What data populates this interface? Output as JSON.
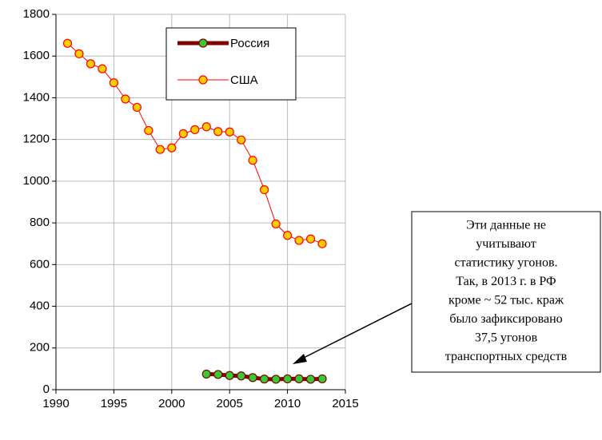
{
  "chart_data": {
    "type": "line",
    "x": [
      1991,
      1992,
      1993,
      1994,
      1995,
      1996,
      1997,
      1998,
      1999,
      2000,
      2001,
      2002,
      2003,
      2004,
      2005,
      2006,
      2007,
      2008,
      2009,
      2010,
      2011,
      2012,
      2013
    ],
    "series": [
      {
        "name": "Россия",
        "color": "#800000",
        "marker_color": "#33cc33",
        "line_width": 5,
        "values": [
          null,
          null,
          null,
          null,
          null,
          null,
          null,
          null,
          null,
          null,
          null,
          null,
          75,
          73,
          68,
          66,
          58,
          51,
          50,
          52,
          52,
          50,
          52
        ]
      },
      {
        "name": "США",
        "color": "#ff0000",
        "marker_color": "#ffcc00",
        "line_width": 1,
        "values": [
          1661,
          1611,
          1563,
          1539,
          1472,
          1394,
          1354,
          1243,
          1152,
          1160,
          1228,
          1247,
          1261,
          1238,
          1236,
          1198,
          1100,
          959,
          795,
          740,
          716,
          723,
          700
        ]
      }
    ],
    "xlim": [
      1990,
      2015
    ],
    "xticks": [
      1990,
      1995,
      2000,
      2005,
      2010,
      2015
    ],
    "ylim": [
      0,
      1800
    ],
    "yticks": [
      0,
      200,
      400,
      600,
      800,
      1000,
      1200,
      1400,
      1600,
      1800
    ],
    "grid": true,
    "annotation": [
      "Эти данные не",
      "учитывают",
      "статистику угонов.",
      "Так, в 2013 г. в РФ",
      "кроме ~ 52 тыс. краж",
      "было зафиксировано",
      "37,5 угонов",
      "транспортных средств"
    ]
  }
}
